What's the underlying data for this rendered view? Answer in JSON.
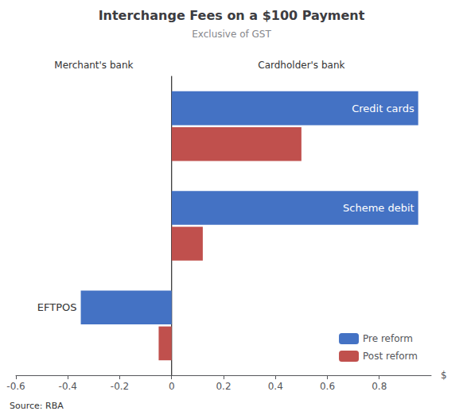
{
  "chart_data": {
    "type": "bar",
    "orientation": "horizontal",
    "title": "Interchange Fees on a $100 Payment",
    "subtitle": "Exclusive of GST",
    "categories": [
      "Credit cards",
      "Scheme debit",
      "EFTPOS"
    ],
    "series": [
      {
        "name": "Pre reform",
        "color": "#4472C4",
        "values": [
          0.95,
          0.95,
          -0.35
        ]
      },
      {
        "name": "Post reform",
        "color": "#C0504D",
        "values": [
          0.5,
          0.12,
          -0.05
        ]
      }
    ],
    "xlabel": "$",
    "xlim": [
      -0.6,
      1.0
    ],
    "xticks": [
      -0.6,
      -0.4,
      -0.2,
      0,
      0.2,
      0.4,
      0.6,
      0.8
    ],
    "annotations": [
      "Merchant's bank",
      "Cardholder's bank"
    ],
    "source": "Source: RBA",
    "legend": "lower right",
    "grid": false,
    "tick_labels": "x"
  }
}
